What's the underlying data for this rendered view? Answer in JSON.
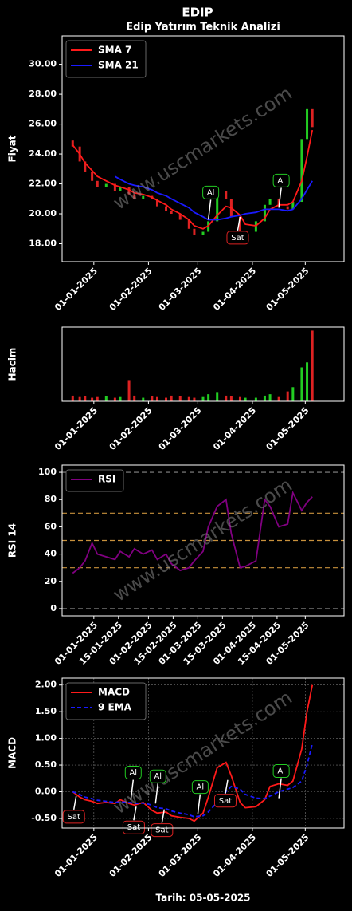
{
  "chart_data": [
    {
      "type": "candlestick",
      "title": "EDIP",
      "subtitle": "Edip Yatırım Teknik Analizi",
      "watermark": "www.uscmarkets.com",
      "y_label": "Fiyat",
      "x": [
        "20-12-2024",
        "24-12-2024",
        "27-12-2024",
        "31-12-2024",
        "03-01-2025",
        "08-01-2025",
        "13-01-2025",
        "16-01-2025",
        "21-01-2025",
        "24-01-2025",
        "29-01-2025",
        "03-02-2025",
        "06-02-2025",
        "11-02-2025",
        "14-02-2025",
        "19-02-2025",
        "24-02-2025",
        "27-02-2025",
        "04-03-2025",
        "07-03-2025",
        "12-03-2025",
        "17-03-2025",
        "20-03-2025",
        "25-03-2025",
        "28-03-2025",
        "03-04-2025",
        "08-04-2025",
        "11-04-2025",
        "16-04-2025",
        "21-04-2025",
        "24-04-2025",
        "29-04-2025",
        "02-05-2025",
        "05-05-2025"
      ],
      "open": [
        24.9,
        24.5,
        23.5,
        22.8,
        22.2,
        21.8,
        22.0,
        21.5,
        21.8,
        21.3,
        21.0,
        21.2,
        21.0,
        20.5,
        20.2,
        20.0,
        19.6,
        19.0,
        18.6,
        18.8,
        19.5,
        21.5,
        21.0,
        19.8,
        18.3,
        18.8,
        19.5,
        20.6,
        21.0,
        20.5,
        20.3,
        20.8,
        25.0,
        27.0
      ],
      "close": [
        24.5,
        23.5,
        22.8,
        22.2,
        21.8,
        22.0,
        21.5,
        21.8,
        21.3,
        21.0,
        21.2,
        21.0,
        20.5,
        20.2,
        20.0,
        19.6,
        19.0,
        18.6,
        18.8,
        19.5,
        21.5,
        21.0,
        19.8,
        18.3,
        18.8,
        19.5,
        20.6,
        21.0,
        20.5,
        20.3,
        20.8,
        25.0,
        27.0,
        25.8
      ],
      "up_color": "#22cc22",
      "down_color": "#dd2222",
      "series": [
        {
          "name": "SMA 7",
          "color": "#ff1a1a",
          "values": [
            24.6,
            24.0,
            23.4,
            22.9,
            22.5,
            22.2,
            21.9,
            21.8,
            21.6,
            21.4,
            21.3,
            21.1,
            20.9,
            20.6,
            20.3,
            20.0,
            19.6,
            19.2,
            19.0,
            19.2,
            19.9,
            20.5,
            20.4,
            19.9,
            19.3,
            19.2,
            19.7,
            20.3,
            20.6,
            20.6,
            20.8,
            22.2,
            23.8,
            25.6
          ]
        },
        {
          "name": "SMA 21",
          "color": "#1a1aff",
          "values": [
            null,
            null,
            null,
            null,
            null,
            null,
            22.5,
            22.3,
            22.0,
            21.9,
            21.8,
            21.6,
            21.4,
            21.2,
            21.0,
            20.7,
            20.4,
            20.1,
            19.8,
            19.6,
            19.6,
            19.7,
            19.8,
            19.9,
            20.0,
            20.1,
            20.3,
            20.3,
            20.3,
            20.2,
            20.3,
            21.0,
            21.6,
            22.2
          ]
        }
      ],
      "annotations": [
        {
          "label": "Al",
          "x": "07-03-2025",
          "y": 19.5
        },
        {
          "label": "Sat",
          "x": "25-03-2025",
          "y": 19.9
        },
        {
          "label": "Al",
          "x": "16-04-2025",
          "y": 20.3
        }
      ],
      "xlim": [
        "14-12-2024",
        "23-05-2025"
      ],
      "xticks": [
        "01-01-2025",
        "01-02-2025",
        "01-03-2025",
        "01-04-2025",
        "01-05-2025"
      ],
      "ylim": [
        16.8,
        31.9
      ],
      "yticks": [
        {
          "value": 18,
          "label": "18.00"
        },
        {
          "value": 20,
          "label": "20.00"
        },
        {
          "value": 22,
          "label": "22.00"
        },
        {
          "value": 24,
          "label": "24.00"
        },
        {
          "value": 26,
          "label": "26.00"
        },
        {
          "value": 28,
          "label": "28.00"
        },
        {
          "value": 30,
          "label": "30.00"
        }
      ],
      "legend": "upper left"
    },
    {
      "type": "bar",
      "y_label": "Hacim",
      "x": [
        "20-12-2024",
        "24-12-2024",
        "27-12-2024",
        "31-12-2024",
        "03-01-2025",
        "08-01-2025",
        "13-01-2025",
        "16-01-2025",
        "21-01-2025",
        "24-01-2025",
        "29-01-2025",
        "03-02-2025",
        "06-02-2025",
        "11-02-2025",
        "14-02-2025",
        "19-02-2025",
        "24-02-2025",
        "27-02-2025",
        "04-03-2025",
        "07-03-2025",
        "12-03-2025",
        "17-03-2025",
        "20-03-2025",
        "25-03-2025",
        "28-03-2025",
        "03-04-2025",
        "08-04-2025",
        "11-04-2025",
        "16-04-2025",
        "21-04-2025",
        "24-04-2025",
        "29-04-2025",
        "02-05-2025",
        "05-05-2025"
      ],
      "values": [
        8,
        6,
        7,
        5,
        6,
        7,
        5,
        6,
        30,
        8,
        5,
        7,
        6,
        5,
        8,
        7,
        6,
        5,
        6,
        10,
        12,
        8,
        7,
        6,
        5,
        5,
        8,
        10,
        6,
        14,
        20,
        48,
        55,
        100
      ],
      "xlim": [
        "14-12-2024",
        "23-05-2025"
      ],
      "xticks": [
        "01-01-2025",
        "01-02-2025",
        "01-03-2025",
        "01-04-2025",
        "01-05-2025"
      ],
      "ylim": [
        0,
        105
      ]
    },
    {
      "type": "line",
      "y_label": "RSI 14",
      "x": [
        "20-12-2024",
        "24-12-2024",
        "27-12-2024",
        "31-12-2024",
        "03-01-2025",
        "08-01-2025",
        "13-01-2025",
        "16-01-2025",
        "21-01-2025",
        "24-01-2025",
        "29-01-2025",
        "03-02-2025",
        "06-02-2025",
        "11-02-2025",
        "14-02-2025",
        "19-02-2025",
        "24-02-2025",
        "27-02-2025",
        "04-03-2025",
        "07-03-2025",
        "12-03-2025",
        "17-03-2025",
        "20-03-2025",
        "25-03-2025",
        "28-03-2025",
        "03-04-2025",
        "08-04-2025",
        "11-04-2025",
        "16-04-2025",
        "21-04-2025",
        "24-04-2025",
        "29-04-2025",
        "02-05-2025",
        "05-05-2025"
      ],
      "series": [
        {
          "name": "RSI",
          "color": "#800080",
          "values": [
            26,
            30,
            35,
            48,
            40,
            38,
            36,
            42,
            38,
            44,
            40,
            43,
            36,
            40,
            33,
            28,
            30,
            35,
            42,
            60,
            75,
            80,
            55,
            30,
            31,
            35,
            80,
            75,
            60,
            62,
            85,
            72,
            78,
            82
          ]
        }
      ],
      "hlines": [
        0,
        30,
        50,
        70,
        100
      ],
      "hline_colors": [
        "#888888",
        "#c8913c",
        "#c8913c",
        "#c8913c",
        "#888888"
      ],
      "xlim": [
        "14-12-2024",
        "23-05-2025"
      ],
      "xticks": [
        "01-01-2025",
        "15-01-2025",
        "01-02-2025",
        "15-02-2025",
        "01-03-2025",
        "15-03-2025",
        "01-04-2025",
        "15-04-2025",
        "01-05-2025"
      ],
      "ylim": [
        -5.3,
        105.3
      ],
      "yticks": [
        0,
        20,
        40,
        60,
        80,
        100
      ],
      "legend": "upper left"
    },
    {
      "type": "line",
      "y_label": "MACD",
      "x_label": "Tarih: 05-05-2025",
      "grid": true,
      "x": [
        "20-12-2024",
        "24-12-2024",
        "27-12-2024",
        "31-12-2024",
        "03-01-2025",
        "08-01-2025",
        "13-01-2025",
        "16-01-2025",
        "21-01-2025",
        "24-01-2025",
        "29-01-2025",
        "03-02-2025",
        "06-02-2025",
        "11-02-2025",
        "14-02-2025",
        "19-02-2025",
        "24-02-2025",
        "27-02-2025",
        "04-03-2025",
        "07-03-2025",
        "12-03-2025",
        "17-03-2025",
        "20-03-2025",
        "25-03-2025",
        "28-03-2025",
        "03-04-2025",
        "08-04-2025",
        "11-04-2025",
        "16-04-2025",
        "21-04-2025",
        "24-04-2025",
        "29-04-2025",
        "02-05-2025",
        "05-05-2025"
      ],
      "series": [
        {
          "name": "MACD",
          "color": "#ff1a1a",
          "values": [
            0.0,
            -0.1,
            -0.15,
            -0.18,
            -0.22,
            -0.2,
            -0.22,
            -0.15,
            -0.22,
            -0.25,
            -0.2,
            -0.35,
            -0.4,
            -0.38,
            -0.45,
            -0.48,
            -0.5,
            -0.55,
            -0.4,
            -0.1,
            0.45,
            0.55,
            0.3,
            -0.2,
            -0.3,
            -0.28,
            -0.15,
            0.1,
            0.15,
            0.12,
            0.2,
            0.8,
            1.5,
            2.0
          ]
        },
        {
          "name": "9 EMA",
          "color": "#1a1aff",
          "dashed": true,
          "values": [
            0.0,
            -0.05,
            -0.1,
            -0.13,
            -0.16,
            -0.18,
            -0.2,
            -0.19,
            -0.2,
            -0.22,
            -0.21,
            -0.25,
            -0.3,
            -0.32,
            -0.36,
            -0.4,
            -0.43,
            -0.47,
            -0.45,
            -0.38,
            -0.2,
            0.0,
            0.1,
            0.05,
            -0.05,
            -0.12,
            -0.13,
            -0.08,
            0.0,
            0.05,
            0.08,
            0.2,
            0.5,
            0.9
          ]
        }
      ],
      "annotations": [
        {
          "label": "Sat",
          "x": "22-12-2024",
          "y": -0.05
        },
        {
          "label": "Al",
          "x": "22-01-2025",
          "y": -0.18
        },
        {
          "label": "Sat",
          "x": "25-01-2025",
          "y": -0.25
        },
        {
          "label": "Al",
          "x": "05-02-2025",
          "y": -0.25
        },
        {
          "label": "Sat",
          "x": "10-02-2025",
          "y": -0.3
        },
        {
          "label": "Al",
          "x": "01-03-2025",
          "y": -0.45
        },
        {
          "label": "Sat",
          "x": "18-03-2025",
          "y": 0.25
        },
        {
          "label": "Al",
          "x": "16-04-2025",
          "y": -0.15
        }
      ],
      "xlim": [
        "14-12-2024",
        "23-05-2025"
      ],
      "xticks": [
        "01-01-2025",
        "01-02-2025",
        "01-03-2025",
        "01-04-2025",
        "01-05-2025"
      ],
      "ylim": [
        -0.68,
        2.13
      ],
      "yticks": [
        {
          "value": -0.5,
          "label": "-0.50"
        },
        {
          "value": 0,
          "label": "0.00"
        },
        {
          "value": 0.5,
          "label": "0.50"
        },
        {
          "value": 1,
          "label": "1.00"
        },
        {
          "value": 1.5,
          "label": "1.50"
        },
        {
          "value": 2,
          "label": "2.00"
        }
      ],
      "legend": "upper left"
    }
  ]
}
